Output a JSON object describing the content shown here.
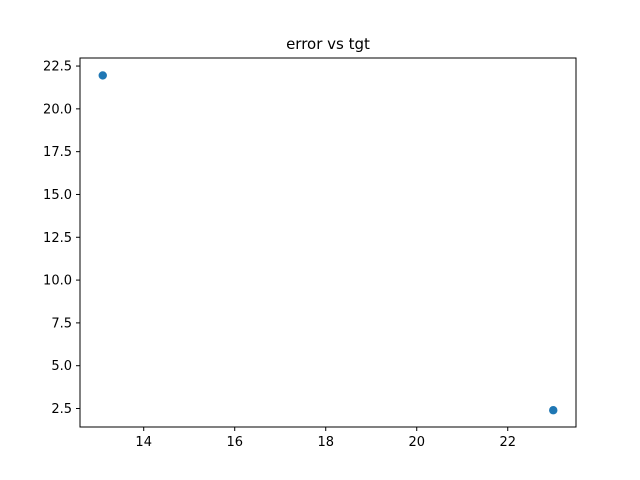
{
  "chart_data": {
    "type": "scatter",
    "title": "error vs tgt",
    "xlabel": "",
    "ylabel": "",
    "xlim": [
      12.6,
      23.5
    ],
    "ylim": [
      1.42,
      22.97
    ],
    "x_ticks": [
      14,
      16,
      18,
      20,
      22
    ],
    "y_ticks": [
      2.5,
      5.0,
      7.5,
      10.0,
      12.5,
      15.0,
      17.5,
      20.0,
      22.5
    ],
    "x_tick_labels": [
      "14",
      "16",
      "18",
      "20",
      "22"
    ],
    "y_tick_labels": [
      "2.5",
      "5.0",
      "7.5",
      "10.0",
      "12.5",
      "15.0",
      "17.5",
      "20.0",
      "22.5"
    ],
    "grid": false,
    "series": [
      {
        "color": "#1f77b4",
        "points": [
          {
            "x": 13.1,
            "y": 21.95
          },
          {
            "x": 23.0,
            "y": 2.4
          }
        ]
      }
    ]
  }
}
